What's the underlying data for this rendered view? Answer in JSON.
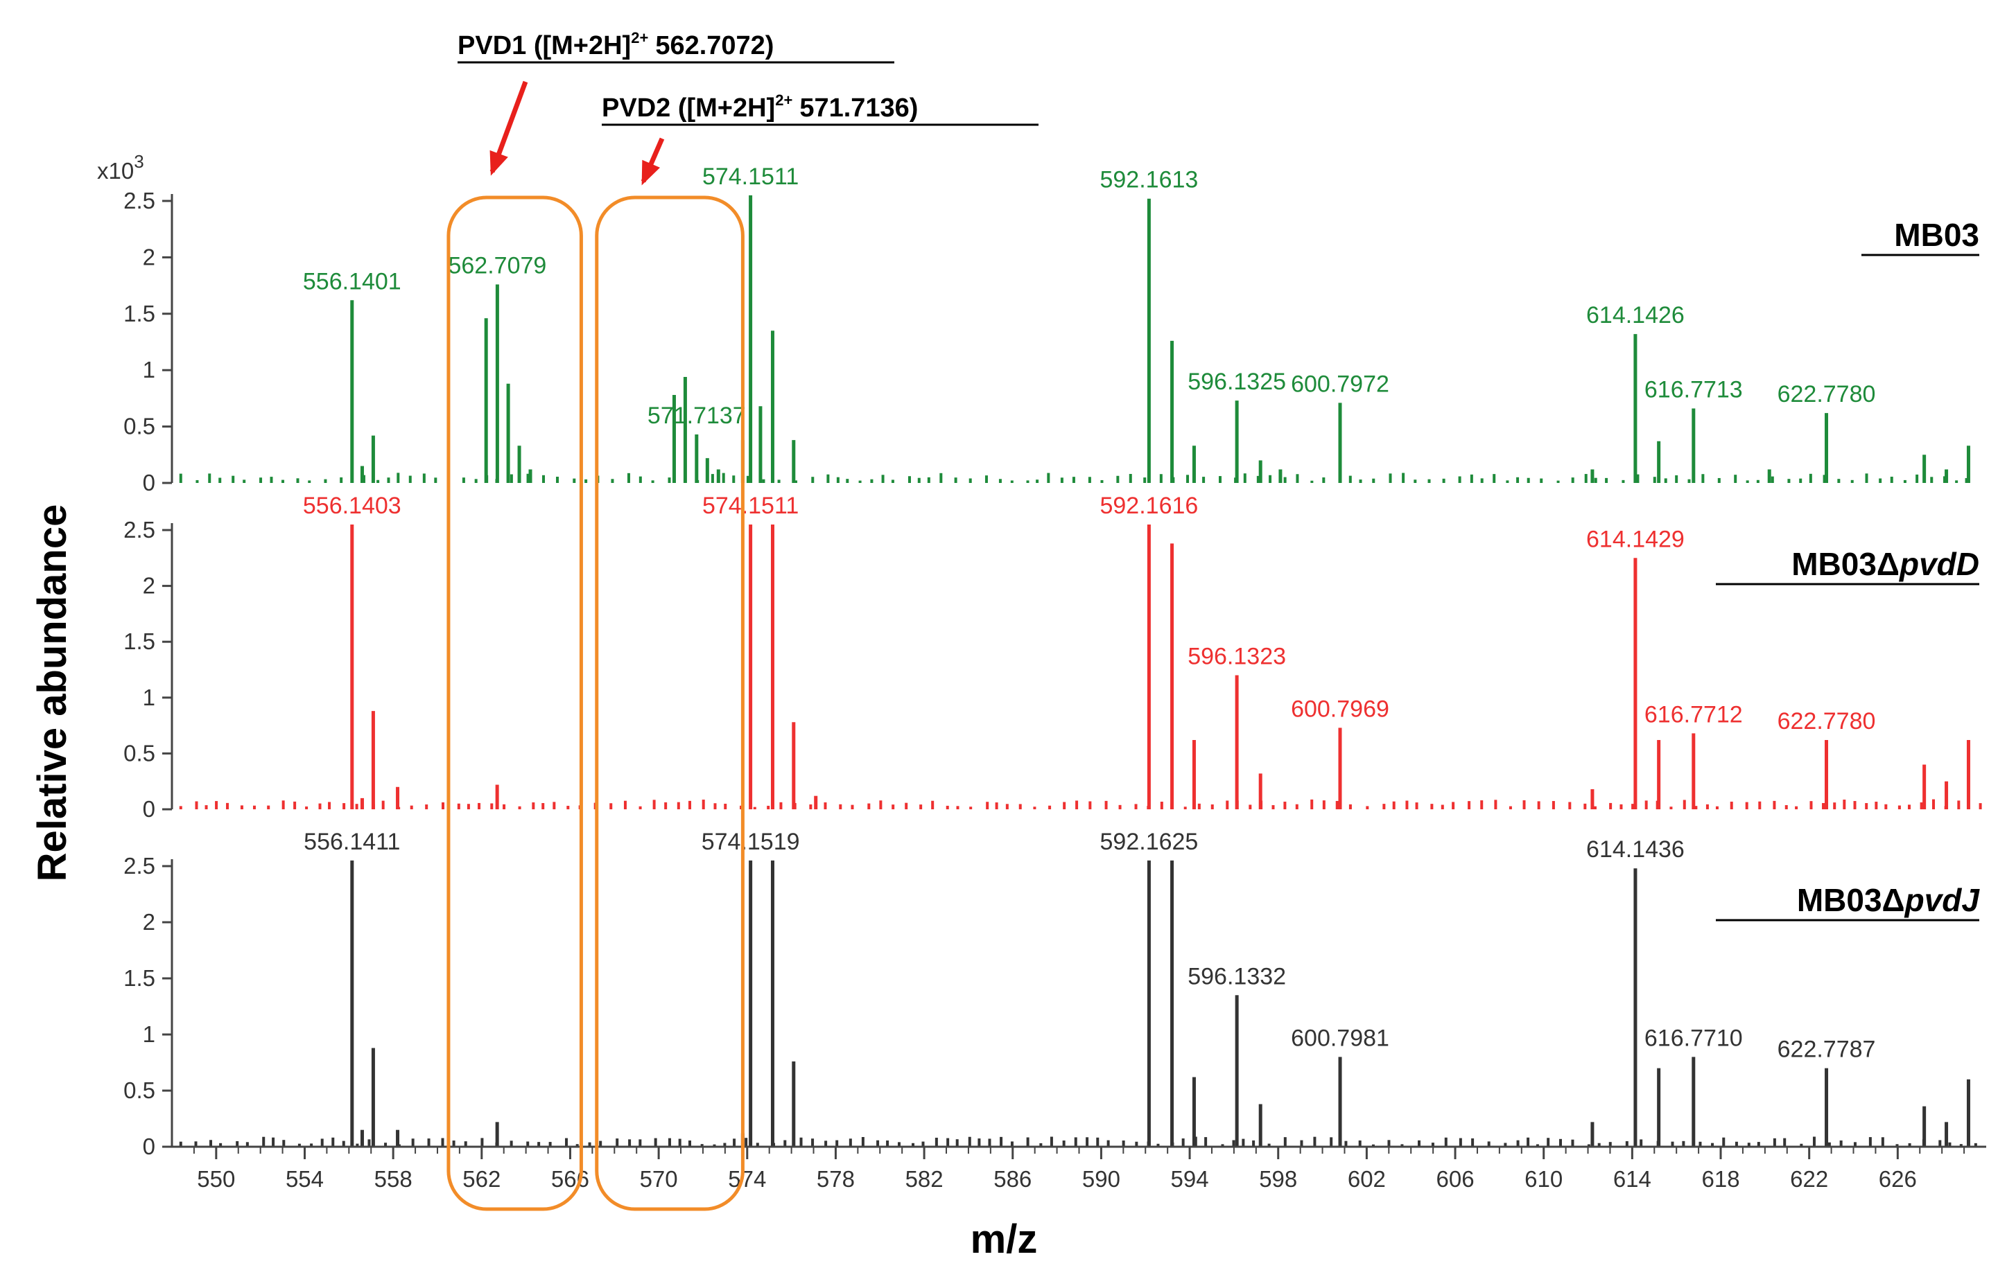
{
  "chart_data": {
    "type": "bar",
    "title": "",
    "xlabel": "m/z",
    "ylabel": "Relative abundance",
    "y_scale_label": "x10",
    "y_scale_exponent": "3",
    "xlim": [
      548,
      630
    ],
    "ylim": [
      0,
      2.5
    ],
    "xticks": [
      "550",
      "554",
      "558",
      "562",
      "566",
      "570",
      "574",
      "578",
      "582",
      "586",
      "590",
      "594",
      "598",
      "602",
      "606",
      "610",
      "614",
      "618",
      "622",
      "626"
    ],
    "yticks": [
      "0",
      "0.5",
      "1",
      "1.5",
      "2",
      "2.5"
    ],
    "annotations": [
      {
        "name": "PVD1",
        "text": "PVD1 ([M+2H]",
        "sup": "2+",
        "mz_text": "562.7072)",
        "x_range": [
          560.5,
          566.5
        ]
      },
      {
        "name": "PVD2",
        "text": "PVD2 ([M+2H]",
        "sup": "2+",
        "mz_text": "571.7136)",
        "x_range": [
          567.2,
          573.8
        ]
      }
    ],
    "series": [
      {
        "name": "MB03",
        "label_main": "MB03",
        "label_italic": "",
        "color": "#1e8b3a",
        "peaks": [
          {
            "mz": 556.1401,
            "value": 1.62,
            "label": "556.1401"
          },
          {
            "mz": 556.6,
            "value": 0.15
          },
          {
            "mz": 557.1,
            "value": 0.42
          },
          {
            "mz": 562.2,
            "value": 1.46
          },
          {
            "mz": 562.7079,
            "value": 1.76,
            "label": "562.7079"
          },
          {
            "mz": 563.2,
            "value": 0.88
          },
          {
            "mz": 563.7,
            "value": 0.33
          },
          {
            "mz": 564.2,
            "value": 0.12
          },
          {
            "mz": 570.7,
            "value": 0.78
          },
          {
            "mz": 571.2,
            "value": 0.94
          },
          {
            "mz": 571.7137,
            "value": 0.43,
            "label": "571.7137"
          },
          {
            "mz": 572.2,
            "value": 0.22
          },
          {
            "mz": 572.7,
            "value": 0.12
          },
          {
            "mz": 573.8,
            "value": 0.38
          },
          {
            "mz": 574.1511,
            "value": 2.55,
            "label": "574.1511"
          },
          {
            "mz": 574.6,
            "value": 0.68
          },
          {
            "mz": 575.15,
            "value": 1.35
          },
          {
            "mz": 576.1,
            "value": 0.38
          },
          {
            "mz": 592.1613,
            "value": 2.52,
            "label": "592.1613"
          },
          {
            "mz": 593.2,
            "value": 1.26
          },
          {
            "mz": 594.2,
            "value": 0.33
          },
          {
            "mz": 596.1325,
            "value": 0.73,
            "label": "596.1325"
          },
          {
            "mz": 597.2,
            "value": 0.2
          },
          {
            "mz": 598.1,
            "value": 0.12
          },
          {
            "mz": 600.7972,
            "value": 0.71,
            "label": "600.7972"
          },
          {
            "mz": 612.2,
            "value": 0.12
          },
          {
            "mz": 614.1426,
            "value": 1.32,
            "label": "614.1426"
          },
          {
            "mz": 615.2,
            "value": 0.37
          },
          {
            "mz": 616.7713,
            "value": 0.66,
            "label": "616.7713"
          },
          {
            "mz": 620.2,
            "value": 0.12
          },
          {
            "mz": 622.778,
            "value": 0.62,
            "label": "622.7780"
          },
          {
            "mz": 627.2,
            "value": 0.25
          },
          {
            "mz": 628.2,
            "value": 0.12
          },
          {
            "mz": 629.2,
            "value": 0.33
          }
        ]
      },
      {
        "name": "MB03ΔpvdD",
        "label_main": "MB03Δ",
        "label_italic": "pvdD",
        "color": "#ee3030",
        "peaks": [
          {
            "mz": 556.1403,
            "value": 2.55,
            "label": "556.1403"
          },
          {
            "mz": 556.6,
            "value": 0.1
          },
          {
            "mz": 557.1,
            "value": 0.88
          },
          {
            "mz": 558.2,
            "value": 0.2
          },
          {
            "mz": 562.7,
            "value": 0.22
          },
          {
            "mz": 574.1511,
            "value": 2.55,
            "label": "574.1511"
          },
          {
            "mz": 575.15,
            "value": 2.55
          },
          {
            "mz": 576.1,
            "value": 0.78
          },
          {
            "mz": 577.1,
            "value": 0.12
          },
          {
            "mz": 592.1616,
            "value": 2.55,
            "label": "592.1616"
          },
          {
            "mz": 593.2,
            "value": 2.38
          },
          {
            "mz": 594.2,
            "value": 0.62
          },
          {
            "mz": 596.1323,
            "value": 1.2,
            "label": "596.1323"
          },
          {
            "mz": 597.2,
            "value": 0.32
          },
          {
            "mz": 600.7969,
            "value": 0.73,
            "label": "600.7969"
          },
          {
            "mz": 612.2,
            "value": 0.18
          },
          {
            "mz": 614.1429,
            "value": 2.25,
            "label": "614.1429"
          },
          {
            "mz": 615.2,
            "value": 0.62
          },
          {
            "mz": 616.7712,
            "value": 0.68,
            "label": "616.7712"
          },
          {
            "mz": 622.778,
            "value": 0.62,
            "label": "622.7780"
          },
          {
            "mz": 627.2,
            "value": 0.4
          },
          {
            "mz": 628.2,
            "value": 0.25
          },
          {
            "mz": 629.2,
            "value": 0.62
          }
        ]
      },
      {
        "name": "MB03ΔpvdJ",
        "label_main": "MB03Δ",
        "label_italic": "pvdJ",
        "color": "#333333",
        "peaks": [
          {
            "mz": 556.1411,
            "value": 2.55,
            "label": "556.1411"
          },
          {
            "mz": 556.6,
            "value": 0.15
          },
          {
            "mz": 557.1,
            "value": 0.88
          },
          {
            "mz": 558.2,
            "value": 0.15
          },
          {
            "mz": 562.7,
            "value": 0.22
          },
          {
            "mz": 573.8,
            "value": 0.12
          },
          {
            "mz": 574.1519,
            "value": 2.55,
            "label": "574.1519"
          },
          {
            "mz": 575.15,
            "value": 2.55
          },
          {
            "mz": 576.1,
            "value": 0.76
          },
          {
            "mz": 592.1625,
            "value": 2.55,
            "label": "592.1625"
          },
          {
            "mz": 593.2,
            "value": 2.55
          },
          {
            "mz": 594.2,
            "value": 0.62
          },
          {
            "mz": 596.1332,
            "value": 1.35,
            "label": "596.1332"
          },
          {
            "mz": 597.2,
            "value": 0.38
          },
          {
            "mz": 600.7981,
            "value": 0.8,
            "label": "600.7981"
          },
          {
            "mz": 612.2,
            "value": 0.22
          },
          {
            "mz": 614.1436,
            "value": 2.48,
            "label": "614.1436"
          },
          {
            "mz": 615.2,
            "value": 0.7
          },
          {
            "mz": 616.771,
            "value": 0.8,
            "label": "616.7710"
          },
          {
            "mz": 622.7787,
            "value": 0.7,
            "label": "622.7787"
          },
          {
            "mz": 627.2,
            "value": 0.36
          },
          {
            "mz": 628.2,
            "value": 0.22
          },
          {
            "mz": 629.2,
            "value": 0.6
          }
        ]
      }
    ]
  }
}
